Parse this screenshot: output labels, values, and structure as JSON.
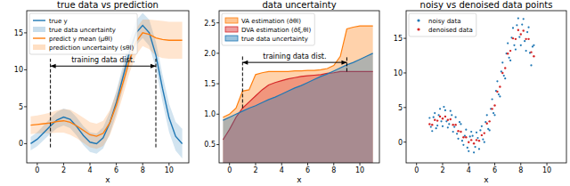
{
  "chart_data": [
    {
      "type": "line",
      "title": "true data vs prediction",
      "x_label": "x",
      "x": [
        -0.5,
        0,
        0.5,
        1,
        1.5,
        2,
        2.5,
        3,
        3.5,
        4,
        4.5,
        5,
        5.5,
        6,
        6.5,
        7,
        7.5,
        8,
        8.5,
        9,
        9.5,
        10,
        10.5,
        11
      ],
      "xlim": [
        -0.8,
        11.5
      ],
      "xticks": [
        0,
        2,
        4,
        6,
        8,
        10
      ],
      "ylim": [
        -2.6,
        18
      ],
      "yticks": [
        0,
        5,
        10,
        15
      ],
      "legend": "upper left",
      "series": [
        {
          "name": "true y",
          "type": "line",
          "color": "#1f77b4",
          "values": [
            0,
            0.6,
            1.5,
            2.4,
            3.2,
            3.6,
            3.3,
            2.3,
            1.1,
            0.2,
            0,
            0.8,
            2.8,
            5.6,
            9,
            12.4,
            15,
            16,
            15,
            12,
            7.5,
            3.5,
            1,
            0
          ]
        },
        {
          "name": "true data uncertainty",
          "type": "band",
          "color": "#1f77b4",
          "lower": [
            -0.9,
            -0.35,
            0.5,
            1.35,
            2.1,
            2.46,
            2.11,
            1.06,
            -0.18,
            -1.13,
            -1.38,
            -0.63,
            1.33,
            4.08,
            7.43,
            10.78,
            13.34,
            14.29,
            13.24,
            10.19,
            5.65,
            1.6,
            -0.95,
            -2
          ],
          "upper": [
            0.9,
            1.55,
            2.5,
            3.45,
            4.3,
            4.74,
            4.49,
            3.54,
            2.38,
            1.53,
            1.38,
            2.23,
            4.27,
            7.12,
            10.57,
            14.02,
            16.66,
            17.71,
            16.76,
            13.81,
            9.35,
            5.4,
            2.95,
            2
          ]
        },
        {
          "name": "predict y mean (μθl)",
          "type": "line",
          "color": "#ff7f0e",
          "values": [
            2.5,
            2.6,
            2.7,
            2.8,
            3.0,
            3.1,
            2.9,
            2.4,
            1.8,
            1.2,
            1.0,
            1.4,
            2.8,
            5.2,
            8.2,
            11.3,
            13.8,
            15.0,
            14.8,
            14.3,
            14.1,
            14.0,
            14.0,
            14.0
          ]
        },
        {
          "name": "prediction uncertainty (sθl)",
          "type": "band",
          "color": "#ff7f0e",
          "lower": [
            1.3,
            1.4,
            1.4,
            1.4,
            1.5,
            1.5,
            1.2,
            0.7,
            0.1,
            -0.5,
            -0.7,
            -0.3,
            1.1,
            3.5,
            6.5,
            9.6,
            12.0,
            13.2,
            12.8,
            11.9,
            11.6,
            11.5,
            11.5,
            11.5
          ],
          "upper": [
            3.7,
            3.8,
            4.0,
            4.2,
            4.5,
            4.7,
            4.6,
            4.1,
            3.5,
            2.9,
            2.7,
            3.1,
            4.5,
            6.9,
            9.9,
            13.0,
            15.6,
            16.8,
            16.8,
            16.7,
            16.6,
            16.5,
            16.5,
            16.5
          ]
        }
      ],
      "annotations": [
        {
          "text": "training data dist.",
          "x_start": 1,
          "x_end": 9,
          "y": 10.5
        }
      ],
      "vlines": [
        {
          "x": 1,
          "y_start": -0.5,
          "y_end": 11.5
        },
        {
          "x": 9,
          "y_start": -0.5,
          "y_end": 11.5
        }
      ]
    },
    {
      "type": "area",
      "title": "data uncertainty",
      "x_label": "x",
      "x": [
        -0.5,
        0,
        0.5,
        1,
        1.5,
        2,
        2.5,
        3,
        3.5,
        4,
        4.5,
        5,
        5.5,
        6,
        6.5,
        7,
        7.5,
        8,
        8.5,
        9,
        9.5,
        10,
        10.5,
        11
      ],
      "xlim": [
        -0.8,
        11.5
      ],
      "xticks": [
        0,
        2,
        4,
        6,
        8,
        10
      ],
      "ylim": [
        0.2,
        2.7
      ],
      "yticks": [
        0.5,
        {
          "value": 1,
          "label": "1.0"
        },
        1.5,
        {
          "value": 2,
          "label": "2.0"
        },
        2.5
      ],
      "legend": "upper left",
      "series": [
        {
          "name": "VA estimation (σ̂θl)",
          "type": "area",
          "color": "#ff7f0e",
          "values": [
            0.95,
            1.0,
            1.1,
            1.38,
            1.4,
            1.65,
            1.68,
            1.7,
            1.7,
            1.7,
            1.7,
            1.71,
            1.71,
            1.72,
            1.72,
            1.73,
            1.75,
            1.8,
            1.95,
            2.4,
            2.43,
            2.45,
            2.45,
            2.45
          ]
        },
        {
          "name": "DVA estimation (σ̂ξ,θl)",
          "type": "area",
          "color": "#d62728",
          "values": [
            0.58,
            0.75,
            0.95,
            1.1,
            1.2,
            1.3,
            1.4,
            1.48,
            1.52,
            1.55,
            1.58,
            1.6,
            1.62,
            1.63,
            1.64,
            1.65,
            1.67,
            1.68,
            1.7,
            1.7,
            1.7,
            1.7,
            1.7,
            1.7
          ]
        },
        {
          "name": "true data uncertainty",
          "type": "area",
          "color": "#1f77b4",
          "values": [
            0.9,
            0.95,
            1.0,
            1.05,
            1.1,
            1.14,
            1.19,
            1.24,
            1.28,
            1.33,
            1.38,
            1.43,
            1.47,
            1.52,
            1.57,
            1.62,
            1.66,
            1.71,
            1.76,
            1.81,
            1.85,
            1.9,
            1.95,
            2.0
          ]
        }
      ],
      "annotations": [
        {
          "text": "training data dist.",
          "x_start": 1,
          "x_end": 9,
          "y": 1.85
        }
      ],
      "vlines": [
        {
          "x": 1,
          "y_start": 1.1,
          "y_end": 1.95
        },
        {
          "x": 9,
          "y_start": 1.7,
          "y_end": 1.95
        }
      ]
    },
    {
      "type": "scatter",
      "title": "noisy vs denoised data points",
      "x_label": "x",
      "xlim": [
        -0.8,
        11.5
      ],
      "xticks": [
        0,
        2,
        4,
        6,
        8,
        10
      ],
      "ylim": [
        -3,
        19
      ],
      "yticks": [
        0,
        5,
        10,
        15
      ],
      "legend": "upper left",
      "series": [
        {
          "name": "noisy data",
          "type": "scatter",
          "color": "#1f77b4",
          "x": [
            1.0,
            1.1,
            1.2,
            1.3,
            1.4,
            1.5,
            1.6,
            1.7,
            1.8,
            1.9,
            2.0,
            2.1,
            2.2,
            2.3,
            2.4,
            2.5,
            2.6,
            2.7,
            2.8,
            2.9,
            3.0,
            3.1,
            3.2,
            3.3,
            3.4,
            3.5,
            3.6,
            3.7,
            3.8,
            3.9,
            4.0,
            4.1,
            4.2,
            4.3,
            4.4,
            4.5,
            4.6,
            4.7,
            4.8,
            4.9,
            5.0,
            5.1,
            5.2,
            5.3,
            5.4,
            5.5,
            5.6,
            5.7,
            5.8,
            5.9,
            6.0,
            6.1,
            6.2,
            6.3,
            6.4,
            6.5,
            6.6,
            6.7,
            6.8,
            6.9,
            7.0,
            7.1,
            7.2,
            7.3,
            7.4,
            7.5,
            7.6,
            7.7,
            7.8,
            7.9,
            8.0,
            8.1,
            8.2,
            8.3,
            8.4,
            8.5,
            8.6,
            8.7,
            8.8,
            8.9,
            9.0
          ],
          "values": [
            3.5,
            2.2,
            1.6,
            3.6,
            4.2,
            2.0,
            2.4,
            3.9,
            4.8,
            3.0,
            2.3,
            5.1,
            4.6,
            3.0,
            2.1,
            2.6,
            4.5,
            3.9,
            1.5,
            2.2,
            3.6,
            1.2,
            0.5,
            2.9,
            2.6,
            0.2,
            -0.4,
            0.9,
            1.8,
            -0.8,
            -1.3,
            0.8,
            1.5,
            0.9,
            -1.5,
            -0.7,
            1.4,
            0.6,
            -1.0,
            1.7,
            2.3,
            0.4,
            0.0,
            2.9,
            3.9,
            1.9,
            1.7,
            4.8,
            6.2,
            4.2,
            3.9,
            7.4,
            8.8,
            6.9,
            6.6,
            10.2,
            11.5,
            9.6,
            9.2,
            12.8,
            14.3,
            12.2,
            11.8,
            15.1,
            16.5,
            14.0,
            13.4,
            16.9,
            17.9,
            15.2,
            14.0,
            17.0,
            17.8,
            14.6,
            13.2,
            15.9,
            16.6,
            12.9,
            11.1,
            13.8,
            14.0
          ]
        },
        {
          "name": "denoised data",
          "type": "scatter",
          "color": "#d62728",
          "x": [
            1.0,
            1.2,
            1.4,
            1.6,
            1.8,
            2.0,
            2.2,
            2.4,
            2.6,
            2.8,
            3.0,
            3.2,
            3.4,
            3.6,
            3.8,
            4.0,
            4.2,
            4.4,
            4.6,
            4.8,
            5.0,
            5.2,
            5.4,
            5.6,
            5.8,
            6.0,
            6.2,
            6.4,
            6.6,
            6.8,
            7.0,
            7.2,
            7.4,
            7.6,
            7.8,
            8.0,
            8.2,
            8.4,
            8.6,
            8.8,
            9.0
          ],
          "values": [
            2.6,
            2.5,
            3.2,
            3.1,
            3.7,
            3.4,
            3.7,
            3.2,
            3.3,
            2.5,
            2.5,
            1.6,
            1.5,
            0.7,
            0.7,
            0.0,
            0.3,
            -0.2,
            0.3,
            0.2,
            1.0,
            1.3,
            2.7,
            3.0,
            4.8,
            5.3,
            7.3,
            8.0,
            10.0,
            10.7,
            12.8,
            13.2,
            15.0,
            14.9,
            16.2,
            15.6,
            16.1,
            14.9,
            14.9,
            13.0,
            12.4
          ]
        }
      ]
    }
  ]
}
